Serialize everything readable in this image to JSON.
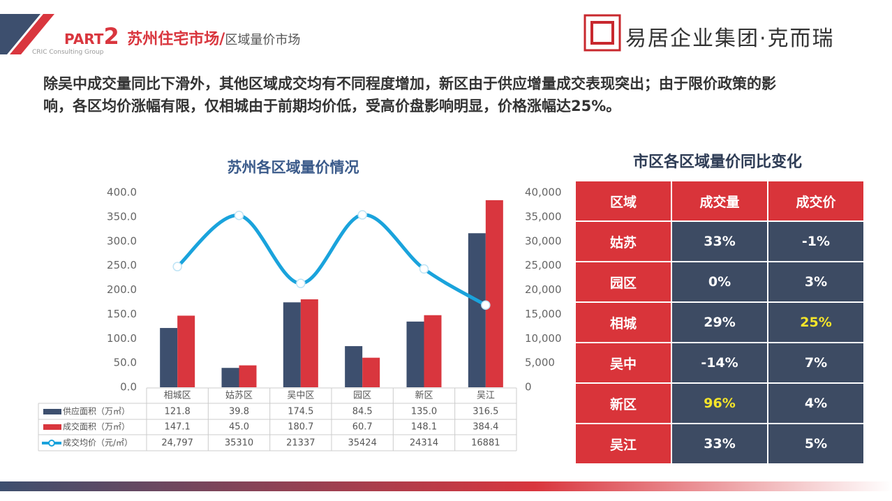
{
  "header": {
    "part": "PART",
    "part_number": "2",
    "title": "苏州住宅市场/",
    "subtitle": "区域量价市场",
    "tagline": "CRIC Consulting Group",
    "logo_text": "易居企业集团·克而瑞"
  },
  "paragraph": [
    "除吴中成交量同比下滑外，其他区域成交均有不同程度增加，新区由于供应增量成交表现突出；由于限价政策的影",
    "响，各区均价涨幅有限，仅相城由于前期均价低，受高价盘影响明显，价格涨幅达25%。"
  ],
  "chart_data": {
    "type": "bar",
    "title": "苏州各区域量价情况",
    "categories": [
      "相城区",
      "姑苏区",
      "吴中区",
      "园区",
      "新区",
      "吴江"
    ],
    "series": [
      {
        "name": "供应面积（万㎡）",
        "type": "bar",
        "color": "#3d4f6e",
        "values": [
          121.8,
          39.8,
          174.5,
          84.5,
          135.0,
          316.5
        ],
        "value_labels": [
          "121.8",
          "39.8",
          "174.5",
          "84.5",
          "135.0",
          "316.5"
        ]
      },
      {
        "name": "成交面积（万㎡）",
        "type": "bar",
        "color": "#d9363e",
        "values": [
          147.1,
          45.0,
          180.7,
          60.7,
          148.1,
          384.4
        ],
        "value_labels": [
          "147.1",
          "45.0",
          "180.7",
          "60.7",
          "148.1",
          "384.4"
        ]
      },
      {
        "name": "成交均价（元/㎡）",
        "type": "line",
        "axis": "y2",
        "color": "#1aa3dc",
        "values": [
          24797,
          35310,
          21337,
          35424,
          24314,
          16881
        ],
        "value_labels": [
          "24,797",
          "35310",
          "21337",
          "35424",
          "24314",
          "16881"
        ]
      }
    ],
    "ylim": [
      0,
      400
    ],
    "yticks": [
      {
        "value": 0,
        "label": "0.0"
      },
      {
        "value": 50,
        "label": "50.0"
      },
      {
        "value": 100,
        "label": "100.0"
      },
      {
        "value": 150,
        "label": "150.0"
      },
      {
        "value": 200,
        "label": "200.0"
      },
      {
        "value": 250,
        "label": "250.0"
      },
      {
        "value": 300,
        "label": "300.0"
      },
      {
        "value": 350,
        "label": "350.0"
      },
      {
        "value": 400,
        "label": "400.0"
      }
    ],
    "y2lim": [
      0,
      40000
    ],
    "y2ticks": [
      0,
      {
        "value": 5000,
        "label": "5,000"
      },
      {
        "value": 10000,
        "label": "10,000"
      },
      {
        "value": 15000,
        "label": "15,000"
      },
      {
        "value": 20000,
        "label": "20,000"
      },
      {
        "value": 25000,
        "label": "25,000"
      },
      {
        "value": 30000,
        "label": "30,000"
      },
      {
        "value": 35000,
        "label": "35,000"
      },
      {
        "value": 40000,
        "label": "40,000"
      }
    ],
    "grid": false
  },
  "table": {
    "title": "市区各区域量价同比变化",
    "columns": [
      "区域",
      "成交量",
      "成交价"
    ],
    "rows": [
      [
        "姑苏",
        "33%",
        "-1%"
      ],
      [
        "园区",
        "0%",
        "3%"
      ],
      [
        "相城",
        "29%",
        "25%"
      ],
      [
        "吴中",
        "-14%",
        "7%"
      ],
      [
        "新区",
        "96%",
        "4%"
      ],
      [
        "吴江",
        "33%",
        "5%"
      ]
    ]
  }
}
